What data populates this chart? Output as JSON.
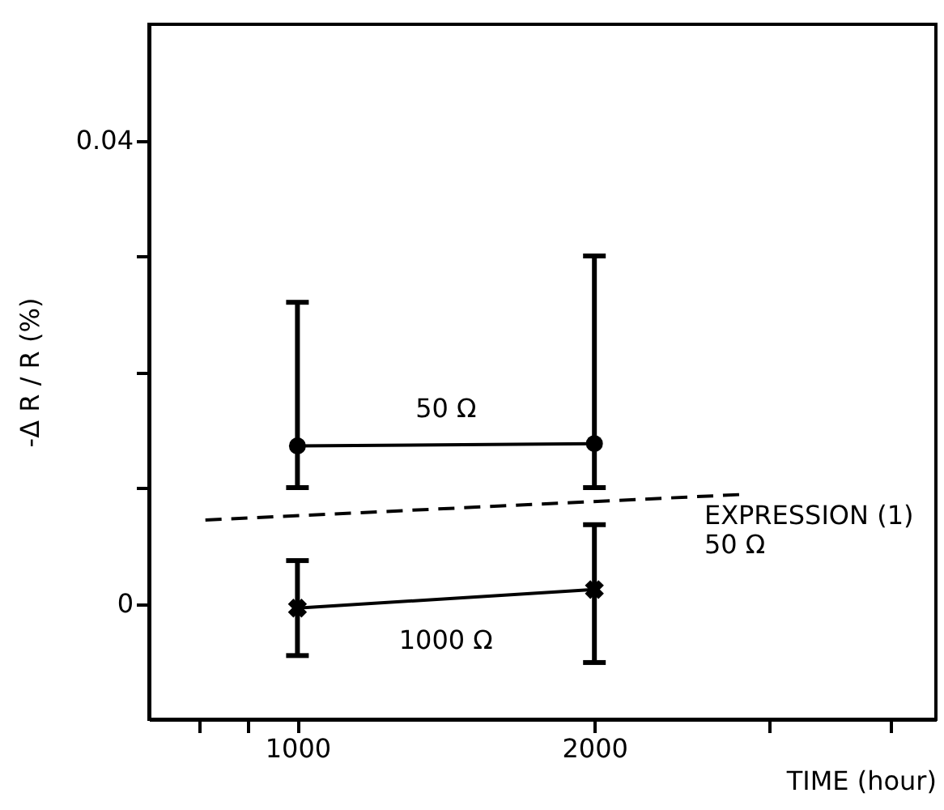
{
  "chart_data": {
    "type": "line",
    "xlabel": "TIME (hour)",
    "ylabel": "-Δ R / R (%)",
    "xlim": [
      500,
      3150
    ],
    "xticks": [
      {
        "value": 670,
        "label": null
      },
      {
        "value": 830,
        "label": null
      },
      1000,
      2000,
      {
        "value": 2590,
        "label": null
      },
      {
        "value": 3000,
        "label": null
      }
    ],
    "ylim": [
      -0.01,
      0.05
    ],
    "yticks": [
      {
        "value": 0.01,
        "label": null
      },
      {
        "value": 0.02,
        "label": null
      },
      {
        "value": 0.03,
        "label": null
      },
      0,
      0.04
    ],
    "grid": false,
    "series": [
      {
        "name": "50 Ω",
        "color": "#000000",
        "marker": "circle",
        "line_style": "solid",
        "x": [
          1000,
          2000
        ],
        "values": [
          0.0136,
          0.0138
        ],
        "errors": [
          [
            0.01,
            0.026
          ],
          [
            0.01,
            0.03
          ]
        ]
      },
      {
        "name": "1000 Ω",
        "color": "#000000",
        "marker": "cross",
        "line_style": "solid",
        "x": [
          1000,
          2000
        ],
        "values": [
          -0.0004,
          0.0012
        ],
        "errors": [
          [
            -0.0045,
            0.0037
          ],
          [
            -0.0051,
            0.0068
          ]
        ]
      },
      {
        "name": "EXPRESSION (1)\n50 Ω",
        "color": "#000000",
        "marker": "none",
        "line_style": "dashed",
        "x": [
          690,
          2490
        ],
        "values": [
          0.0072,
          0.0094
        ]
      }
    ]
  }
}
